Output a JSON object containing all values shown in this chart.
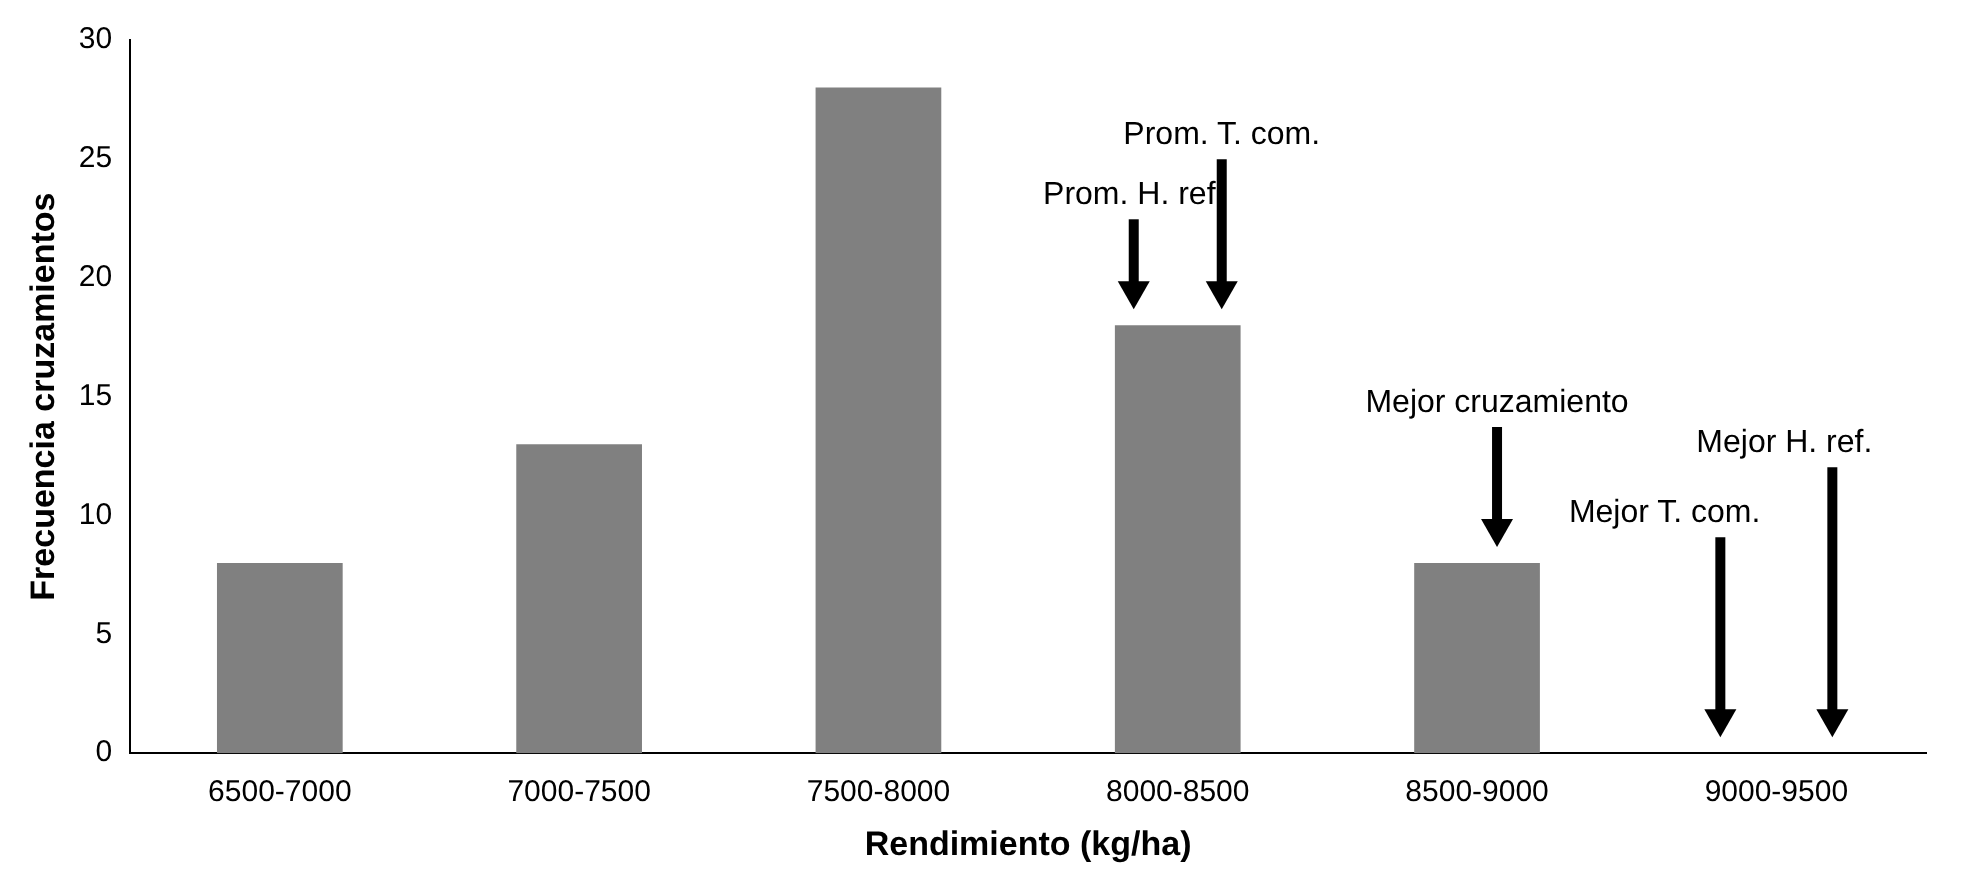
{
  "chart_data": {
    "type": "bar",
    "xlabel": "Rendimiento (kg/ha)",
    "ylabel": "Frecuencia cruzamientos",
    "categories": [
      "6500-7000",
      "7000-7500",
      "7500-8000",
      "8000-8500",
      "8500-9000",
      "9000-9500"
    ],
    "values": [
      8,
      13,
      28,
      18,
      8,
      0
    ],
    "color": "#808080",
    "ylim": [
      0,
      30
    ],
    "yticks": [
      0,
      5,
      10,
      15,
      20,
      25,
      30
    ],
    "grid": false,
    "legend": false,
    "annotations": [
      "Prom. H. ref.",
      "Prom. T. com.",
      "Mejor cruzamiento",
      "Mejor T. com.",
      "Mejor H. ref."
    ]
  }
}
